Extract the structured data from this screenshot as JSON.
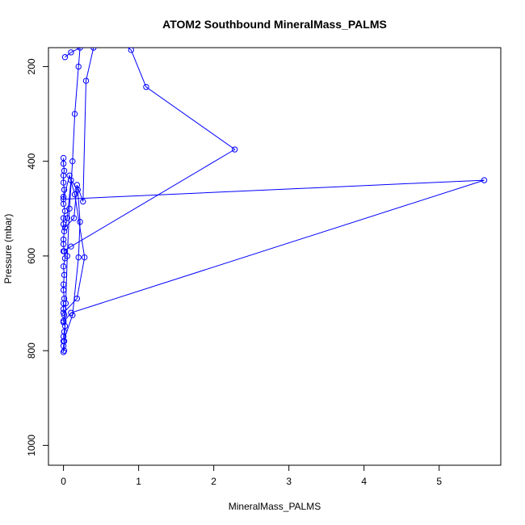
{
  "chart_data": {
    "type": "line",
    "title": "ATOM2 Southbound MineralMass_PALMS",
    "xlabel": "MineralMass_PALMS",
    "ylabel": "Pressure (mbar)",
    "xlim": [
      -0.2,
      5.82
    ],
    "ylim": [
      1042,
      160
    ],
    "y_reversed": true,
    "x_ticks": [
      0,
      1,
      2,
      3,
      4,
      5
    ],
    "y_ticks": [
      200,
      400,
      600,
      800,
      1000
    ],
    "grid": false,
    "legend": "none",
    "color": "#0000ff",
    "series": [
      {
        "x": [
          0.0,
          0.0,
          0.01,
          0.0,
          0.01,
          0.02,
          0.0,
          0.01,
          0.0,
          0.0,
          0.01,
          0.0,
          0.0,
          0.01,
          0.0,
          0.02,
          0.01,
          0.0,
          0.0,
          0.01,
          0.0,
          0.0,
          0.02,
          0.0,
          0.0,
          0.01,
          0.0,
          0.0,
          0.01,
          0.0,
          0.0
        ],
        "y": [
          803,
          790,
          780,
          770,
          760,
          748,
          737,
          725,
          712,
          700,
          690,
          672,
          660,
          640,
          622,
          605,
          590,
          575,
          565,
          548,
          533,
          520,
          505,
          490,
          475,
          460,
          445,
          430,
          420,
          405,
          393
        ]
      },
      {
        "x": [
          0.0,
          0.12,
          0.2,
          0.22,
          0.19,
          0.1,
          0.05,
          0.02,
          0.14,
          0.18,
          0.26,
          0.3,
          0.4,
          0.5,
          0.7,
          0.9,
          1.1,
          2.28,
          0.1,
          0.0
        ],
        "y": [
          780,
          725,
          603,
          528,
          460,
          440,
          520,
          540,
          520,
          450,
          485,
          230,
          160,
          150,
          140,
          165,
          243,
          375,
          580,
          590
        ]
      },
      {
        "x": [
          0.0,
          0.1,
          5.6,
          0.0,
          0.08,
          0.15,
          0.28,
          0.18,
          0.0
        ],
        "y": [
          740,
          720,
          440,
          480,
          430,
          470,
          603,
          690,
          720
        ]
      },
      {
        "x": [
          0.01,
          0.03,
          0.05,
          0.08,
          0.12,
          0.15,
          0.2,
          0.22,
          0.1,
          0.02
        ],
        "y": [
          800,
          700,
          600,
          500,
          400,
          300,
          200,
          160,
          170,
          180
        ]
      }
    ]
  }
}
